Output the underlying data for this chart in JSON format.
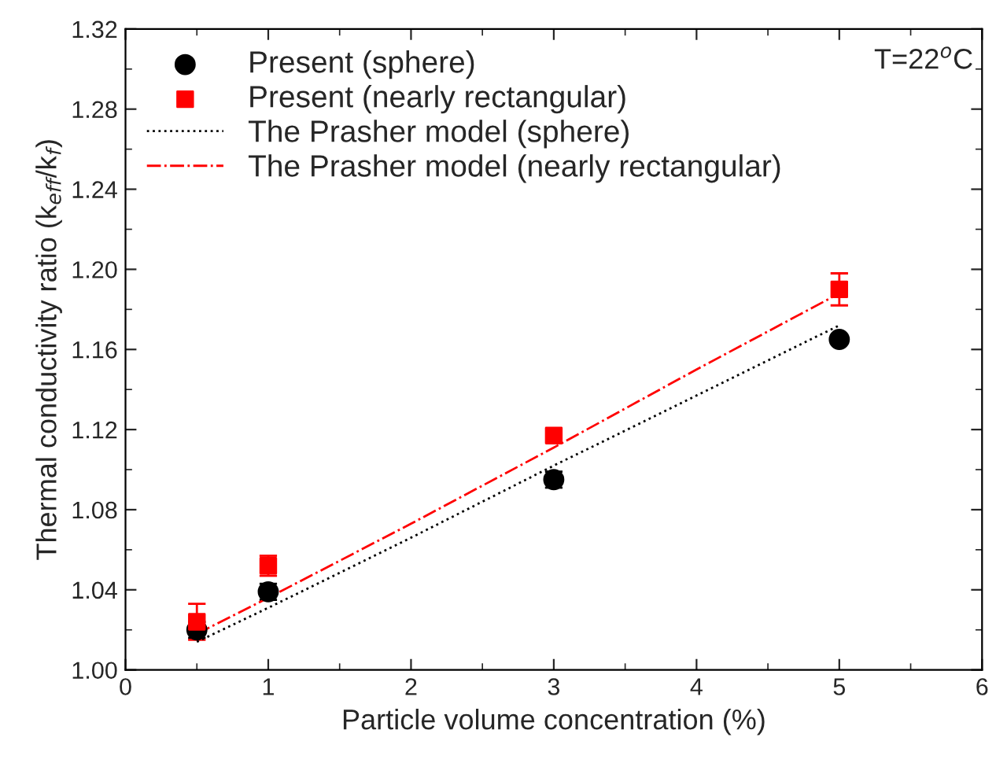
{
  "chart_data": {
    "type": "scatter",
    "xlabel": "Particle volume concentration (%)",
    "ylabel": "Thermal conductivity ratio (k$_{eff}$/k$_{f}$)",
    "annotations": [
      "T=22$^{o}$C"
    ],
    "xlim": [
      0,
      6
    ],
    "xticks": [
      0,
      1,
      2,
      3,
      4,
      5,
      6
    ],
    "ylim": [
      1.0,
      1.32
    ],
    "yticks": [
      {
        "value": 1.0,
        "label": "1.00"
      },
      {
        "value": 1.04,
        "label": "1.04"
      },
      {
        "value": 1.08,
        "label": "1.08"
      },
      {
        "value": 1.12,
        "label": "1.12"
      },
      {
        "value": 1.16,
        "label": "1.16"
      },
      {
        "value": 1.2,
        "label": "1.20"
      },
      {
        "value": 1.24,
        "label": "1.24"
      },
      {
        "value": 1.28,
        "label": "1.28"
      },
      {
        "value": 1.32,
        "label": "1.32"
      }
    ],
    "legend": "top left",
    "grid": false,
    "series": [
      {
        "name": "Present (sphere)",
        "marker": "circle",
        "color": "#000000",
        "x": [
          0.5,
          1,
          3,
          5
        ],
        "values": [
          1.02,
          1.039,
          1.095,
          1.165
        ],
        "errors": [
          0.004,
          0.004,
          0.004,
          null
        ]
      },
      {
        "name": "Present (nearly rectangular)",
        "marker": "square",
        "color": "#ff0000",
        "x": [
          0.5,
          1,
          3,
          5
        ],
        "values": [
          1.024,
          1.052,
          1.117,
          1.19
        ],
        "errors": [
          0.009,
          0.005,
          null,
          0.008
        ]
      },
      {
        "name": "The Prasher model (sphere)",
        "type": "line",
        "line_style": "dotted",
        "color": "#000000",
        "x": [
          0.5,
          1,
          2,
          3,
          4,
          5
        ],
        "values": [
          1.014,
          1.031,
          1.066,
          1.102,
          1.137,
          1.172
        ]
      },
      {
        "name": "The Prasher model (nearly rectangular)",
        "type": "line",
        "line_style": "dashdot",
        "color": "#ff0000",
        "x": [
          0.5,
          1,
          2,
          3,
          4,
          5
        ],
        "values": [
          1.018,
          1.036,
          1.073,
          1.111,
          1.15,
          1.188
        ]
      }
    ]
  }
}
